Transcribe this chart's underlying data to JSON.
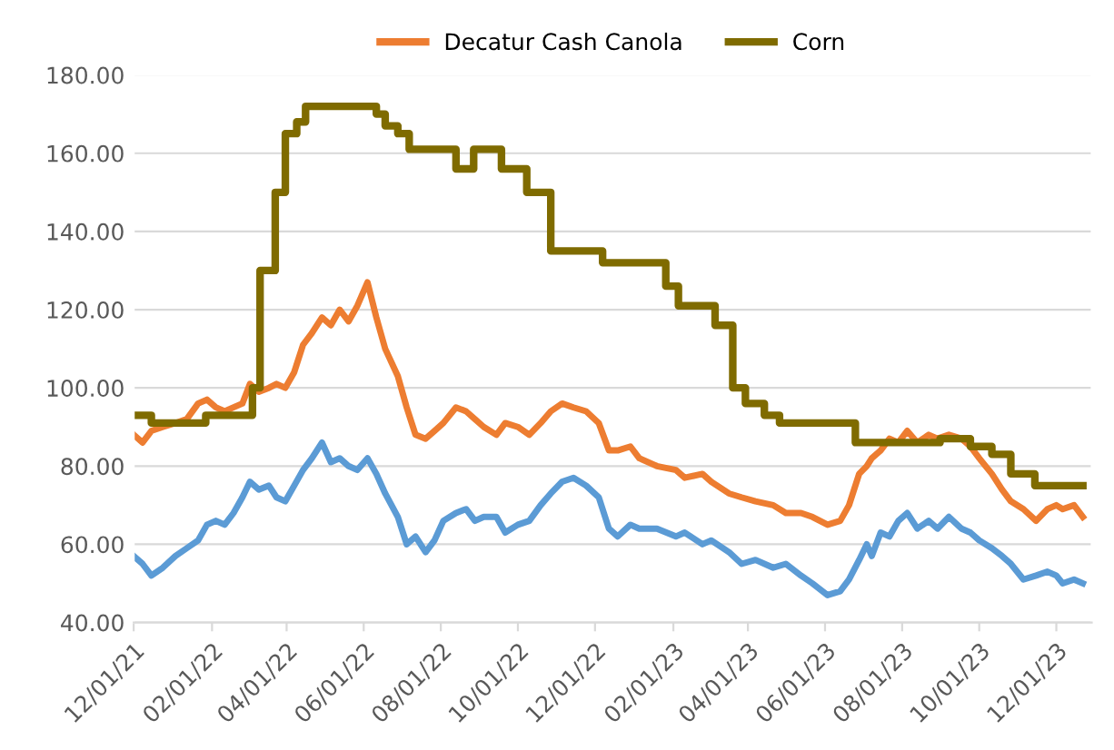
{
  "chart_data": {
    "type": "line",
    "x": [
      "2021-12-01",
      "2021-12-08",
      "2021-12-15",
      "2021-12-24",
      "2022-01-03",
      "2022-01-12",
      "2022-01-21",
      "2022-01-28",
      "2022-02-04",
      "2022-02-11",
      "2022-02-18",
      "2022-02-25",
      "2022-03-03",
      "2022-03-10",
      "2022-03-18",
      "2022-03-24",
      "2022-03-31",
      "2022-04-07",
      "2022-04-14",
      "2022-04-21",
      "2022-04-29",
      "2022-05-06",
      "2022-05-13",
      "2022-05-20",
      "2022-05-27",
      "2022-06-04",
      "2022-06-11",
      "2022-06-18",
      "2022-06-28",
      "2022-07-05",
      "2022-07-12",
      "2022-07-20",
      "2022-07-27",
      "2022-08-03",
      "2022-08-13",
      "2022-08-21",
      "2022-08-28",
      "2022-09-04",
      "2022-09-14",
      "2022-09-21",
      "2022-10-01",
      "2022-10-10",
      "2022-10-19",
      "2022-10-27",
      "2022-11-05",
      "2022-11-14",
      "2022-11-24",
      "2022-12-04",
      "2022-12-12",
      "2022-12-19",
      "2022-12-29",
      "2023-01-05",
      "2023-01-19",
      "2023-02-03",
      "2023-02-10",
      "2023-02-24",
      "2023-03-03",
      "2023-03-17",
      "2023-03-27",
      "2023-04-07",
      "2023-04-21",
      "2023-05-01",
      "2023-05-13",
      "2023-05-22",
      "2023-06-03",
      "2023-06-13",
      "2023-06-20",
      "2023-06-28",
      "2023-07-04",
      "2023-07-08",
      "2023-07-15",
      "2023-07-22",
      "2023-07-29",
      "2023-08-05",
      "2023-08-13",
      "2023-08-22",
      "2023-08-29",
      "2023-09-07",
      "2023-09-17",
      "2023-09-24",
      "2023-10-01",
      "2023-10-11",
      "2023-10-19",
      "2023-10-26",
      "2023-11-05",
      "2023-11-15",
      "2023-11-24",
      "2023-12-01",
      "2023-12-06",
      "2023-12-15",
      "2023-12-22"
    ],
    "series": [
      {
        "color": "#5b9bd5",
        "values": [
          57,
          55,
          52,
          54,
          57,
          59,
          61,
          65,
          66,
          65,
          68,
          72,
          76,
          74,
          75,
          72,
          71,
          75,
          79,
          82,
          86,
          81,
          82,
          80,
          79,
          82,
          78,
          73,
          67,
          60,
          62,
          58,
          61,
          66,
          68,
          69,
          66,
          67,
          67,
          63,
          65,
          66,
          70,
          73,
          76,
          77,
          75,
          72,
          64,
          62,
          65,
          64,
          64,
          62,
          63,
          60,
          61,
          58,
          55,
          56,
          54,
          55,
          52,
          50,
          47,
          48,
          51,
          56,
          60,
          57,
          63,
          62,
          66,
          68,
          64,
          66,
          64,
          67,
          64,
          63,
          61,
          59,
          57,
          55,
          51,
          52,
          53,
          52,
          50,
          51,
          50
        ]
      },
      {
        "name": "Decatur Cash Canola",
        "color": "#ed7d31",
        "values": [
          88,
          86,
          89,
          90,
          91,
          92,
          96,
          97,
          95,
          94,
          95,
          96,
          101,
          99,
          100,
          101,
          100,
          104,
          111,
          114,
          118,
          116,
          120,
          117,
          121,
          127,
          118,
          110,
          103,
          95,
          88,
          87,
          89,
          91,
          95,
          94,
          92,
          90,
          88,
          91,
          90,
          88,
          91,
          94,
          96,
          95,
          94,
          91,
          84,
          84,
          85,
          82,
          80,
          79,
          77,
          78,
          76,
          73,
          72,
          71,
          70,
          68,
          68,
          67,
          65,
          66,
          70,
          78,
          80,
          82,
          84,
          87,
          86,
          89,
          86,
          88,
          87,
          88,
          87,
          85,
          82,
          78,
          74,
          71,
          69,
          66,
          69,
          70,
          69,
          70,
          67
        ]
      },
      {
        "name": "Corn",
        "type": "step",
        "color": "#7f6b00",
        "x": [
          "2021-12-01",
          "2021-12-15",
          "2022-01-27",
          "2022-03-05",
          "2022-03-11",
          "2022-03-23",
          "2022-03-31",
          "2022-04-09",
          "2022-04-16",
          "2022-06-11",
          "2022-06-18",
          "2022-06-28",
          "2022-07-07",
          "2022-08-13",
          "2022-08-27",
          "2022-09-18",
          "2022-10-08",
          "2022-10-27",
          "2022-12-07",
          "2023-01-26",
          "2023-02-05",
          "2023-03-06",
          "2023-03-20",
          "2023-03-30",
          "2023-04-14",
          "2023-04-26",
          "2023-06-25",
          "2023-08-31",
          "2023-09-24",
          "2023-10-11",
          "2023-10-26",
          "2023-11-14",
          "2023-12-22"
        ],
        "values": [
          93,
          91,
          93,
          100,
          130,
          150,
          165,
          168,
          172,
          170,
          167,
          165,
          161,
          156,
          161,
          156,
          150,
          135,
          132,
          126,
          121,
          116,
          100,
          96,
          93,
          91,
          86,
          87,
          85,
          83,
          78,
          75,
          75
        ]
      }
    ],
    "xlim": [
      "2021-12-01",
      "2023-12-29"
    ],
    "xticks": [
      {
        "value": "2021-12-01",
        "label": "12/01/21"
      },
      {
        "value": "2022-02-01",
        "label": "02/01/22"
      },
      {
        "value": "2022-04-01",
        "label": "04/01/22"
      },
      {
        "value": "2022-06-01",
        "label": "06/01/22"
      },
      {
        "value": "2022-08-01",
        "label": "08/01/22"
      },
      {
        "value": "2022-10-01",
        "label": "10/01/22"
      },
      {
        "value": "2022-12-01",
        "label": "12/01/22"
      },
      {
        "value": "2023-02-01",
        "label": "02/01/23"
      },
      {
        "value": "2023-04-01",
        "label": "04/01/23"
      },
      {
        "value": "2023-06-01",
        "label": "06/01/23"
      },
      {
        "value": "2023-08-01",
        "label": "08/01/23"
      },
      {
        "value": "2023-10-01",
        "label": "10/01/23"
      },
      {
        "value": "2023-12-01",
        "label": "12/01/23"
      }
    ],
    "ylim": [
      40,
      180
    ],
    "yticks": [
      {
        "value": 40,
        "label": "40.00"
      },
      {
        "value": 60,
        "label": "60.00"
      },
      {
        "value": 80,
        "label": "80.00"
      },
      {
        "value": 100,
        "label": "100.00"
      },
      {
        "value": 120,
        "label": "120.00"
      },
      {
        "value": 140,
        "label": "140.00"
      },
      {
        "value": 160,
        "label": "160.00"
      },
      {
        "value": 180,
        "label": "180.00"
      }
    ],
    "grid": "y",
    "legend": "top"
  }
}
